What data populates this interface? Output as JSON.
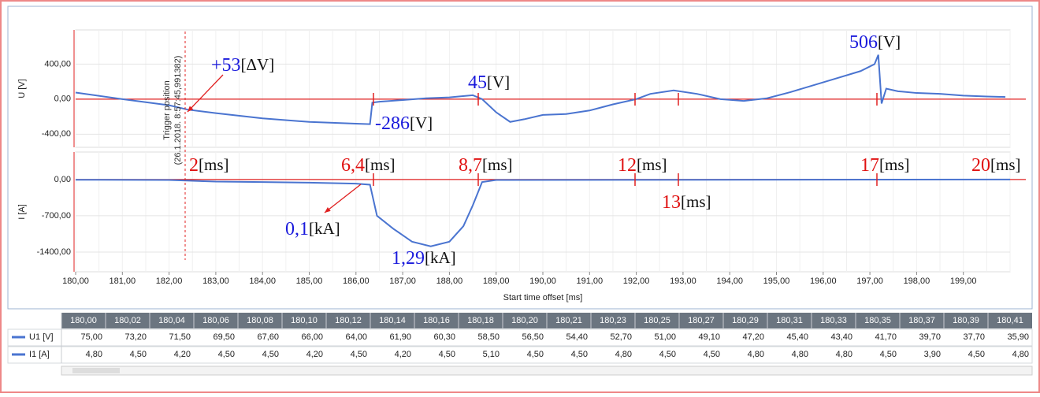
{
  "chart_data": [
    {
      "type": "line",
      "ylabel": "U [V]",
      "xlim": [
        180,
        200
      ],
      "ylim": [
        -550,
        790
      ],
      "yticks": [
        {
          "value": 400,
          "label": "400,00"
        },
        {
          "value": 0,
          "label": "0,00"
        },
        {
          "value": -400,
          "label": "-400,00"
        }
      ],
      "x": [
        180,
        181,
        182,
        182.4,
        183,
        184,
        185,
        186,
        186.3,
        186.35,
        186.5,
        187,
        187.5,
        188,
        188.2,
        188.5,
        188.7,
        189,
        189.3,
        189.6,
        190,
        190.5,
        191,
        191.5,
        192,
        192.3,
        192.8,
        193.3,
        193.8,
        194.3,
        194.8,
        195.3,
        195.8,
        196.3,
        196.8,
        197.1,
        197.18,
        197.25,
        197.35,
        197.6,
        198,
        198.5,
        199,
        199.5,
        199.9
      ],
      "series": [
        {
          "name": "U1 [V]",
          "color": "#4a74d0",
          "values": [
            75,
            0,
            -70,
            -120,
            -160,
            -220,
            -260,
            -280,
            -286,
            -40,
            -30,
            -10,
            10,
            20,
            30,
            45,
            0,
            -150,
            -260,
            -230,
            -180,
            -170,
            -130,
            -60,
            0,
            60,
            100,
            60,
            0,
            -20,
            10,
            80,
            160,
            240,
            320,
            400,
            506,
            -50,
            120,
            90,
            70,
            60,
            40,
            30,
            25
          ]
        }
      ]
    },
    {
      "type": "line",
      "ylabel": "I [A]",
      "xlabel": "Start time offset [ms]",
      "xlim": [
        180,
        200
      ],
      "ylim": [
        -1780,
        530
      ],
      "yticks": [
        {
          "value": 0,
          "label": "0,00"
        },
        {
          "value": -700,
          "label": "-700,00"
        },
        {
          "value": -1400,
          "label": "-1400,00"
        }
      ],
      "xticks": [
        {
          "value": 180,
          "label": "180,00"
        },
        {
          "value": 181,
          "label": "181,00"
        },
        {
          "value": 182,
          "label": "182,00"
        },
        {
          "value": 183,
          "label": "183,00"
        },
        {
          "value": 184,
          "label": "184,00"
        },
        {
          "value": 185,
          "label": "185,00"
        },
        {
          "value": 186,
          "label": "186,00"
        },
        {
          "value": 187,
          "label": "187,00"
        },
        {
          "value": 188,
          "label": "188,00"
        },
        {
          "value": 189,
          "label": "189,00"
        },
        {
          "value": 190,
          "label": "190,00"
        },
        {
          "value": 191,
          "label": "191,00"
        },
        {
          "value": 192,
          "label": "192,00"
        },
        {
          "value": 193,
          "label": "193,00"
        },
        {
          "value": 194,
          "label": "194,00"
        },
        {
          "value": 195,
          "label": "195,00"
        },
        {
          "value": 196,
          "label": "196,00"
        },
        {
          "value": 197,
          "label": "197,00"
        },
        {
          "value": 198,
          "label": "198,00"
        },
        {
          "value": 199,
          "label": "199,00"
        }
      ],
      "x": [
        180,
        182,
        183,
        184,
        185,
        186,
        186.3,
        186.45,
        186.8,
        187.2,
        187.6,
        188,
        188.3,
        188.5,
        188.7,
        189,
        200
      ],
      "series": [
        {
          "name": "I1 [A]",
          "color": "#4a74d0",
          "values": [
            -5,
            -10,
            -40,
            -50,
            -60,
            -80,
            -100,
            -700,
            -950,
            -1200,
            -1290,
            -1200,
            -900,
            -500,
            -50,
            -10,
            0
          ]
        }
      ]
    }
  ],
  "trigger": [
    "Trigger position",
    "(26.1.2018. 8:57:45,991382)"
  ],
  "annotations": [
    {
      "number": "+53",
      "unit": "[ΔV]",
      "color": "#1a1adc"
    },
    {
      "number": "45",
      "unit": "[V]",
      "color": "#1a1adc"
    },
    {
      "number": "-286",
      "unit": "[V]",
      "color": "#1a1adc"
    },
    {
      "number": "506",
      "unit": "[V]",
      "color": "#1a1adc"
    },
    {
      "number": "2",
      "unit": "[ms]",
      "color": "#e01010"
    },
    {
      "number": "6,4",
      "unit": "[ms]",
      "color": "#e01010"
    },
    {
      "number": "8,7",
      "unit": "[ms]",
      "color": "#e01010"
    },
    {
      "number": "12",
      "unit": "[ms]",
      "color": "#e01010"
    },
    {
      "number": "13",
      "unit": "[ms]",
      "color": "#e01010"
    },
    {
      "number": "17",
      "unit": "[ms]",
      "color": "#e01010"
    },
    {
      "number": "20",
      "unit": "[ms]",
      "color": "#e01010"
    },
    {
      "number": "0,1",
      "unit": "[kA]",
      "color": "#1a1adc"
    },
    {
      "number": "1,29",
      "unit": "[kA]",
      "color": "#1a1adc"
    }
  ],
  "table": {
    "header": [
      "180,00",
      "180,02",
      "180,04",
      "180,06",
      "180,08",
      "180,10",
      "180,12",
      "180,14",
      "180,16",
      "180,18",
      "180,20",
      "180,21",
      "180,23",
      "180,25",
      "180,27",
      "180,29",
      "180,31",
      "180,33",
      "180,35",
      "180,37",
      "180,39",
      "180,41"
    ],
    "rows": [
      {
        "name": "U1 [V]",
        "cells": [
          "75,00",
          "73,20",
          "71,50",
          "69,50",
          "67,60",
          "66,00",
          "64,00",
          "61,90",
          "60,30",
          "58,50",
          "56,50",
          "54,40",
          "52,70",
          "51,00",
          "49,10",
          "47,20",
          "45,40",
          "43,40",
          "41,70",
          "39,70",
          "37,70",
          "35,90"
        ]
      },
      {
        "name": "I1 [A]",
        "cells": [
          "4,80",
          "4,50",
          "4,20",
          "4,50",
          "4,50",
          "4,20",
          "4,50",
          "4,20",
          "4,50",
          "5,10",
          "4,50",
          "4,50",
          "4,80",
          "4,50",
          "4,50",
          "4,80",
          "4,80",
          "4,80",
          "4,50",
          "3,90",
          "4,50",
          "4,80"
        ]
      }
    ]
  }
}
